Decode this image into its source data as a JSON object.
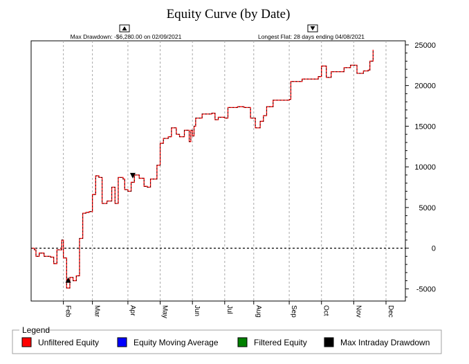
{
  "chart_data": {
    "type": "line",
    "title": "Equity Curve (by Date)",
    "annotations": {
      "max_drawdown": "Max Drawdown: -$6,280.00 on 02/09/2021",
      "longest_flat": "Longest Flat: 28 days ending 04/08/2021"
    },
    "ylim": [
      -6500,
      25500
    ],
    "y_ticks": [
      25000,
      20000,
      15000,
      10000,
      5000,
      0,
      -5000
    ],
    "y_tick_labels": [
      "25000",
      "20000",
      "15000",
      "10000",
      "5000",
      "0",
      "-5000"
    ],
    "x_ticks": [
      1.0,
      1.9,
      3.0,
      4.0,
      5.0,
      6.0,
      6.9,
      8.0,
      9.0,
      10.0,
      11.0
    ],
    "x_tick_labels": [
      "Feb",
      "Mar",
      "Apr",
      "May",
      "Jun",
      "Jul",
      "Aug",
      "Sep",
      "Oct",
      "Nov",
      "Dec"
    ],
    "xlim": [
      0.0,
      11.6
    ],
    "grid": true,
    "zero_line": true,
    "series": [
      {
        "name": "Unfiltered Equity",
        "color": "#ff0000",
        "points": [
          [
            0.0,
            0
          ],
          [
            0.1,
            -200
          ],
          [
            0.15,
            -1000
          ],
          [
            0.25,
            -600
          ],
          [
            0.4,
            -1000
          ],
          [
            0.6,
            -1100
          ],
          [
            0.7,
            -1900
          ],
          [
            0.8,
            -200
          ],
          [
            0.9,
            -200
          ],
          [
            0.95,
            1000
          ],
          [
            1.0,
            -1200
          ],
          [
            1.1,
            -4900
          ],
          [
            1.2,
            -3600
          ],
          [
            1.3,
            -4000
          ],
          [
            1.4,
            -3400
          ],
          [
            1.5,
            1200
          ],
          [
            1.6,
            4300
          ],
          [
            1.7,
            4400
          ],
          [
            1.8,
            4500
          ],
          [
            1.9,
            6600
          ],
          [
            2.0,
            8900
          ],
          [
            2.1,
            8700
          ],
          [
            2.2,
            5500
          ],
          [
            2.35,
            5800
          ],
          [
            2.5,
            7500
          ],
          [
            2.6,
            5500
          ],
          [
            2.7,
            8700
          ],
          [
            2.85,
            8500
          ],
          [
            2.9,
            7200
          ],
          [
            3.0,
            7000
          ],
          [
            3.1,
            8100
          ],
          [
            3.2,
            9000
          ],
          [
            3.35,
            8600
          ],
          [
            3.5,
            7600
          ],
          [
            3.6,
            7500
          ],
          [
            3.7,
            8500
          ],
          [
            3.8,
            8500
          ],
          [
            3.9,
            10200
          ],
          [
            4.0,
            12900
          ],
          [
            4.1,
            13500
          ],
          [
            4.25,
            13700
          ],
          [
            4.35,
            14800
          ],
          [
            4.5,
            14000
          ],
          [
            4.6,
            13700
          ],
          [
            4.75,
            14500
          ],
          [
            4.9,
            13100
          ],
          [
            4.95,
            14500
          ],
          [
            5.0,
            13800
          ],
          [
            5.05,
            15000
          ],
          [
            5.1,
            16000
          ],
          [
            5.3,
            16500
          ],
          [
            5.6,
            16600
          ],
          [
            5.7,
            15800
          ],
          [
            5.8,
            16100
          ],
          [
            6.0,
            16000
          ],
          [
            6.1,
            17300
          ],
          [
            6.4,
            17400
          ],
          [
            6.6,
            17300
          ],
          [
            6.8,
            16000
          ],
          [
            6.95,
            14800
          ],
          [
            7.1,
            15600
          ],
          [
            7.2,
            16300
          ],
          [
            7.3,
            17400
          ],
          [
            7.5,
            18200
          ],
          [
            8.0,
            18300
          ],
          [
            8.05,
            20500
          ],
          [
            8.4,
            20800
          ],
          [
            8.9,
            21100
          ],
          [
            9.0,
            22400
          ],
          [
            9.15,
            21000
          ],
          [
            9.3,
            21700
          ],
          [
            9.7,
            22200
          ],
          [
            9.9,
            22500
          ],
          [
            10.1,
            21500
          ],
          [
            10.3,
            21800
          ],
          [
            10.45,
            21900
          ],
          [
            10.5,
            23000
          ],
          [
            10.6,
            24400
          ]
        ]
      },
      {
        "name": "Equity Moving Average",
        "color": "#0000ff",
        "points": []
      },
      {
        "name": "Filtered Equity",
        "color": "#008000",
        "points": []
      },
      {
        "name": "Max Intraday Drawdown",
        "color": "#000000",
        "points": []
      }
    ],
    "markers": [
      {
        "type": "up-triangle",
        "x": 1.15,
        "y": -4000
      },
      {
        "type": "down-triangle",
        "x": 3.15,
        "y": 9000
      }
    ]
  },
  "legend": {
    "title": "Legend",
    "items": [
      {
        "label": "Unfiltered Equity",
        "color": "#ff0000"
      },
      {
        "label": "Equity Moving Average",
        "color": "#0000ff"
      },
      {
        "label": "Filtered Equity",
        "color": "#008000"
      },
      {
        "label": "Max Intraday Drawdown",
        "color": "#000000"
      }
    ]
  }
}
